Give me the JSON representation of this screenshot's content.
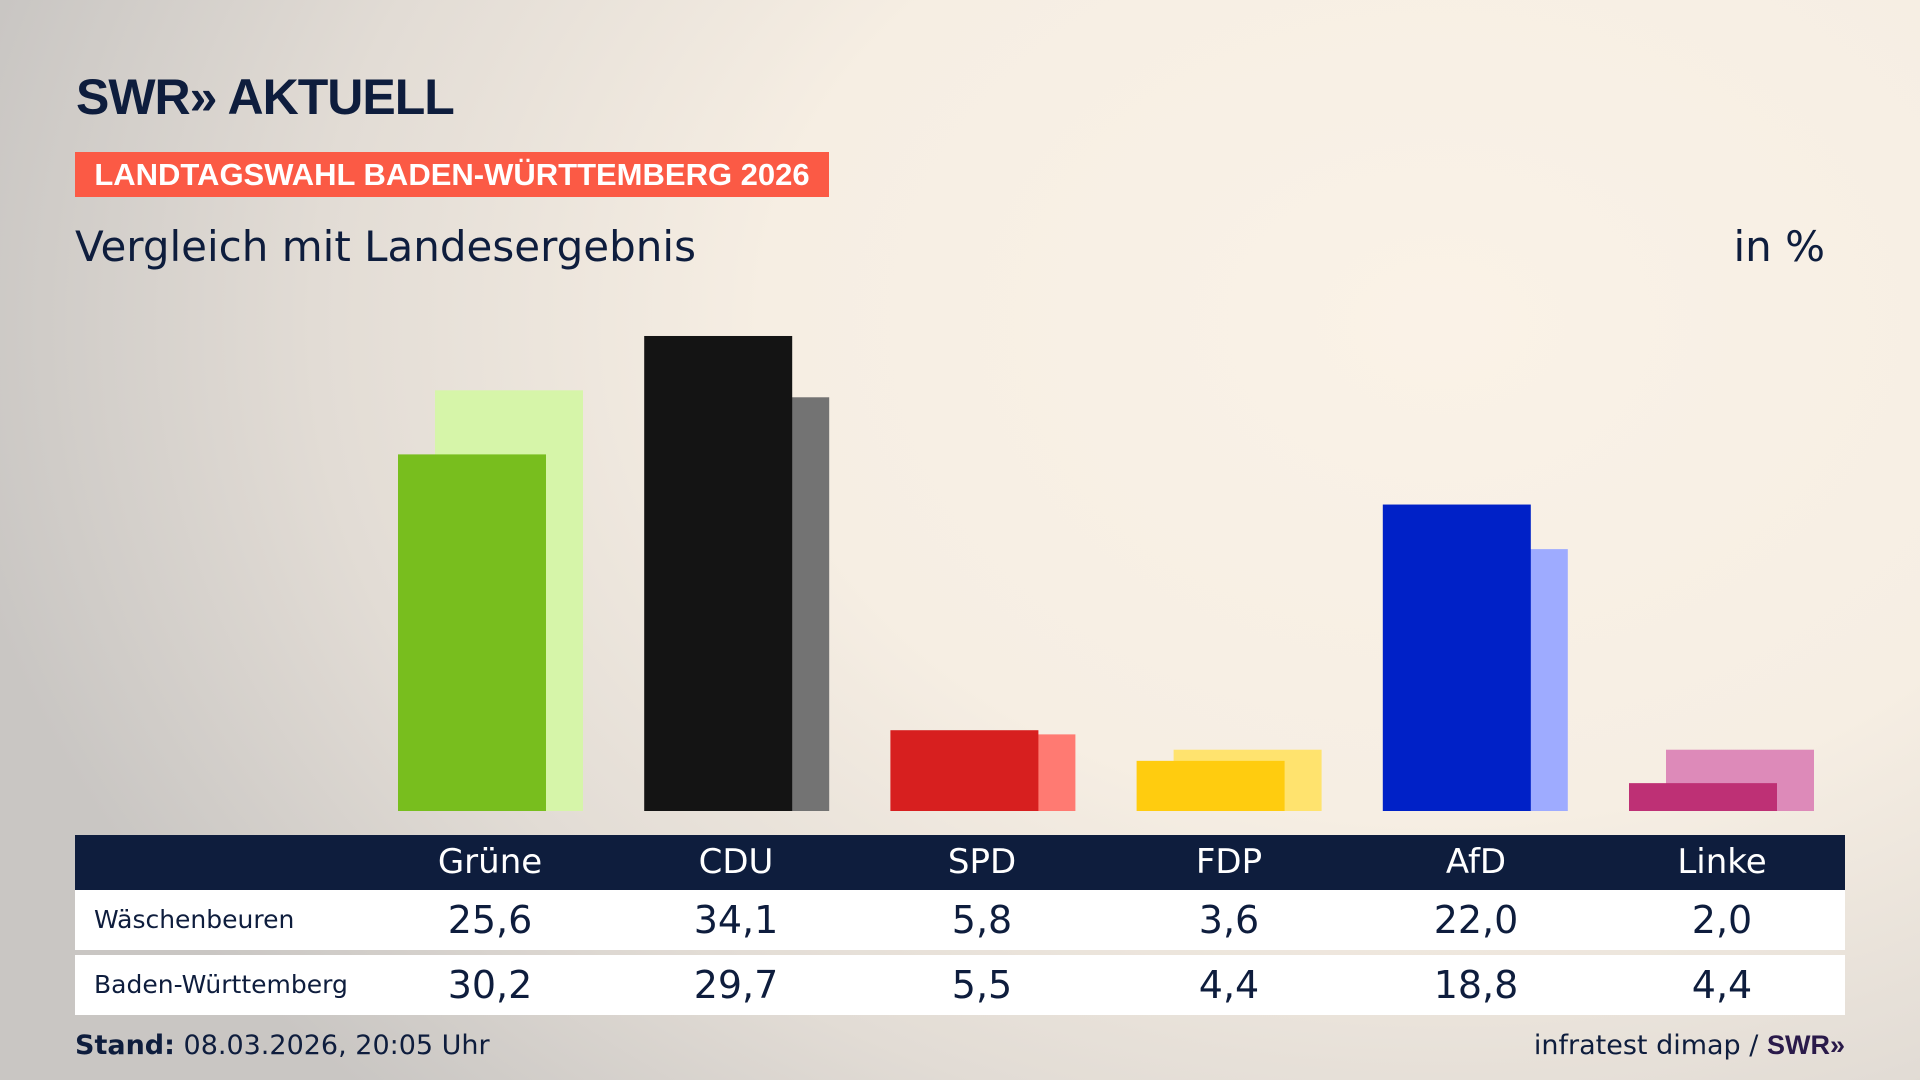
{
  "header": {
    "logo": "SWR» AKTUELL",
    "banner": "LANDTAGSWAHL BADEN-WÜRTTEMBERG 2026",
    "subtitle": "Vergleich mit Landesergebnis",
    "unit": "in %"
  },
  "chart_data": {
    "type": "bar",
    "categories": [
      "Grüne",
      "CDU",
      "SPD",
      "FDP",
      "AfD",
      "Linke"
    ],
    "series": [
      {
        "name": "Wäschenbeuren",
        "values": [
          25.6,
          34.1,
          5.8,
          3.6,
          22.0,
          2.0
        ]
      },
      {
        "name": "Baden-Württemberg",
        "values": [
          30.2,
          29.7,
          5.5,
          4.4,
          18.8,
          4.4
        ]
      }
    ],
    "colors": [
      "#78be1e",
      "#141414",
      "#d71f1f",
      "#ffcc0f",
      "#0021c7",
      "#be3075"
    ],
    "colors_light": [
      "#d6f5a9",
      "#737373",
      "#ff7a72",
      "#ffe36e",
      "#9eabff",
      "#dd8ab9"
    ],
    "ylim": [
      0,
      35
    ],
    "grid": false
  },
  "table": {
    "headers": [
      "Grüne",
      "CDU",
      "SPD",
      "FDP",
      "AfD",
      "Linke"
    ],
    "rows": [
      {
        "label": "Wäschenbeuren",
        "values": [
          "25,6",
          "34,1",
          "5,8",
          "3,6",
          "22,0",
          "2,0"
        ]
      },
      {
        "label": "Baden-Württemberg",
        "values": [
          "30,2",
          "29,7",
          "5,5",
          "4,4",
          "18,8",
          "4,4"
        ]
      }
    ]
  },
  "footer": {
    "stand_label": "Stand:",
    "stand_value": "08.03.2026, 20:05 Uhr",
    "source": "infratest dimap /",
    "source_logo": "SWR»"
  }
}
